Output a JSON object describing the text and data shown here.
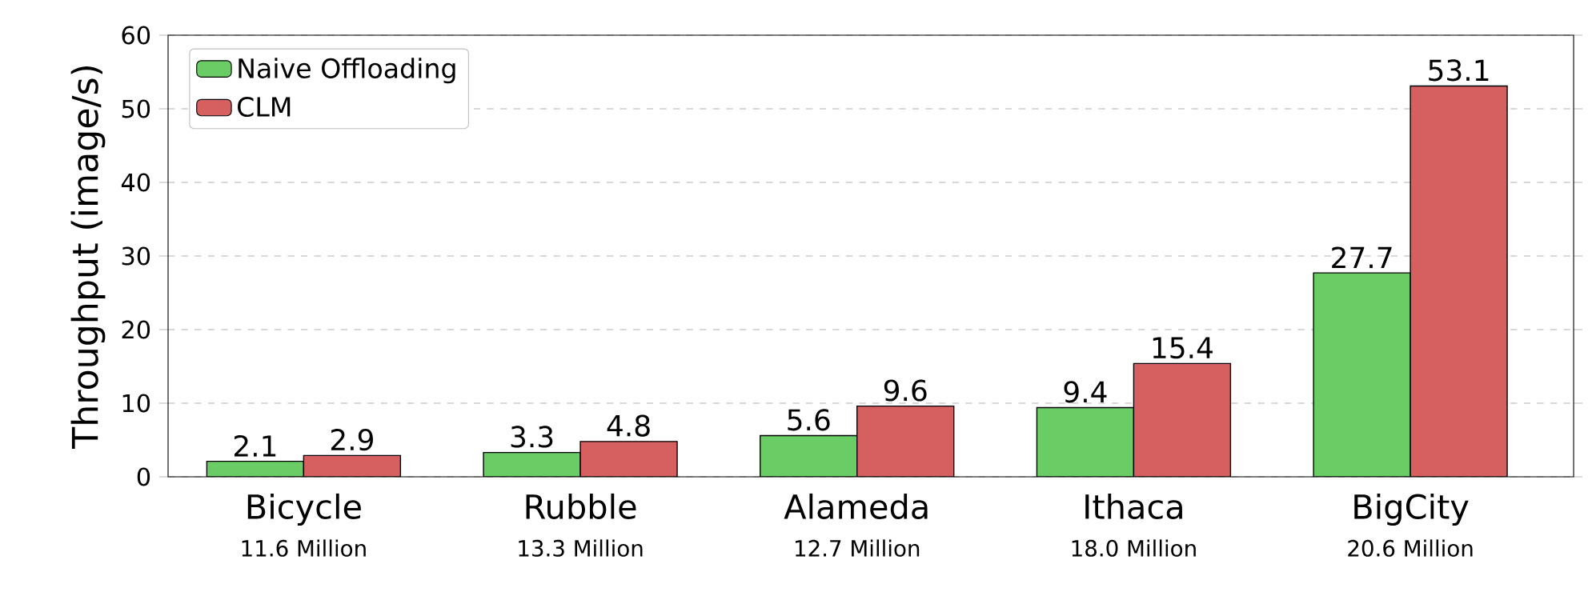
{
  "chart_data": {
    "type": "bar",
    "ylabel": "Throughput (image/s)",
    "categories": [
      "Bicycle",
      "Rubble",
      "Alameda",
      "Ithaca",
      "BigCity"
    ],
    "annotations": [
      "11.6 Million",
      "13.3 Million",
      "12.7 Million",
      "18.0 Million",
      "20.6 Million"
    ],
    "series": [
      {
        "name": "Naive Offloading",
        "color": "#6acc64",
        "values": [
          2.1,
          3.3,
          5.6,
          9.4,
          27.7
        ]
      },
      {
        "name": "CLM",
        "color": "#d65f5f",
        "values": [
          2.9,
          4.8,
          9.6,
          15.4,
          53.1
        ]
      }
    ],
    "ylim": [
      0,
      60
    ],
    "yticks": [
      0,
      10,
      20,
      30,
      40,
      50,
      60
    ],
    "grid": "y",
    "legend": "top left",
    "data_labels": true
  }
}
